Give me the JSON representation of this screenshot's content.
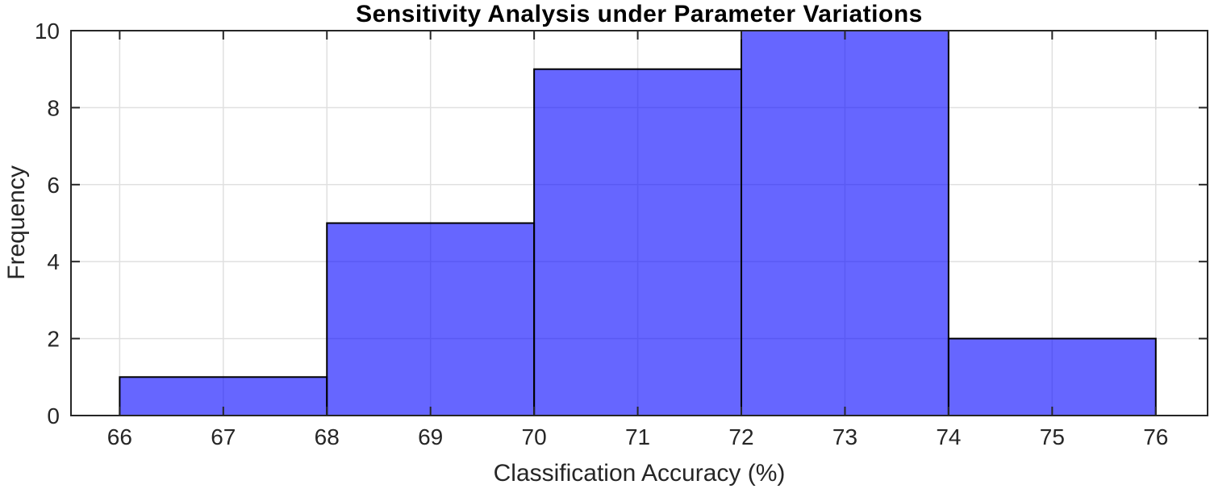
{
  "chart_data": {
    "type": "bar",
    "subtype": "histogram",
    "title": "Sensitivity Analysis under Parameter Variations",
    "xlabel": "Classification Accuracy (%)",
    "ylabel": "Frequency",
    "bin_edges": [
      66,
      68,
      70,
      72,
      74,
      76
    ],
    "values": [
      1,
      5,
      9,
      10,
      2
    ],
    "xlim": [
      65.53,
      76.5
    ],
    "ylim": [
      0,
      10
    ],
    "xticks": [
      66,
      67,
      68,
      69,
      70,
      71,
      72,
      73,
      74,
      75,
      76
    ],
    "yticks": [
      0,
      2,
      4,
      6,
      8,
      10
    ],
    "grid": true,
    "legend": null,
    "colors": {
      "bar_face": "#0000FF",
      "bar_face_alpha": 0.6,
      "bar_edge": "#000000",
      "grid": "#E0E0E0",
      "axis": "#262626",
      "title_color": "#000000",
      "label_color": "#262626"
    }
  }
}
